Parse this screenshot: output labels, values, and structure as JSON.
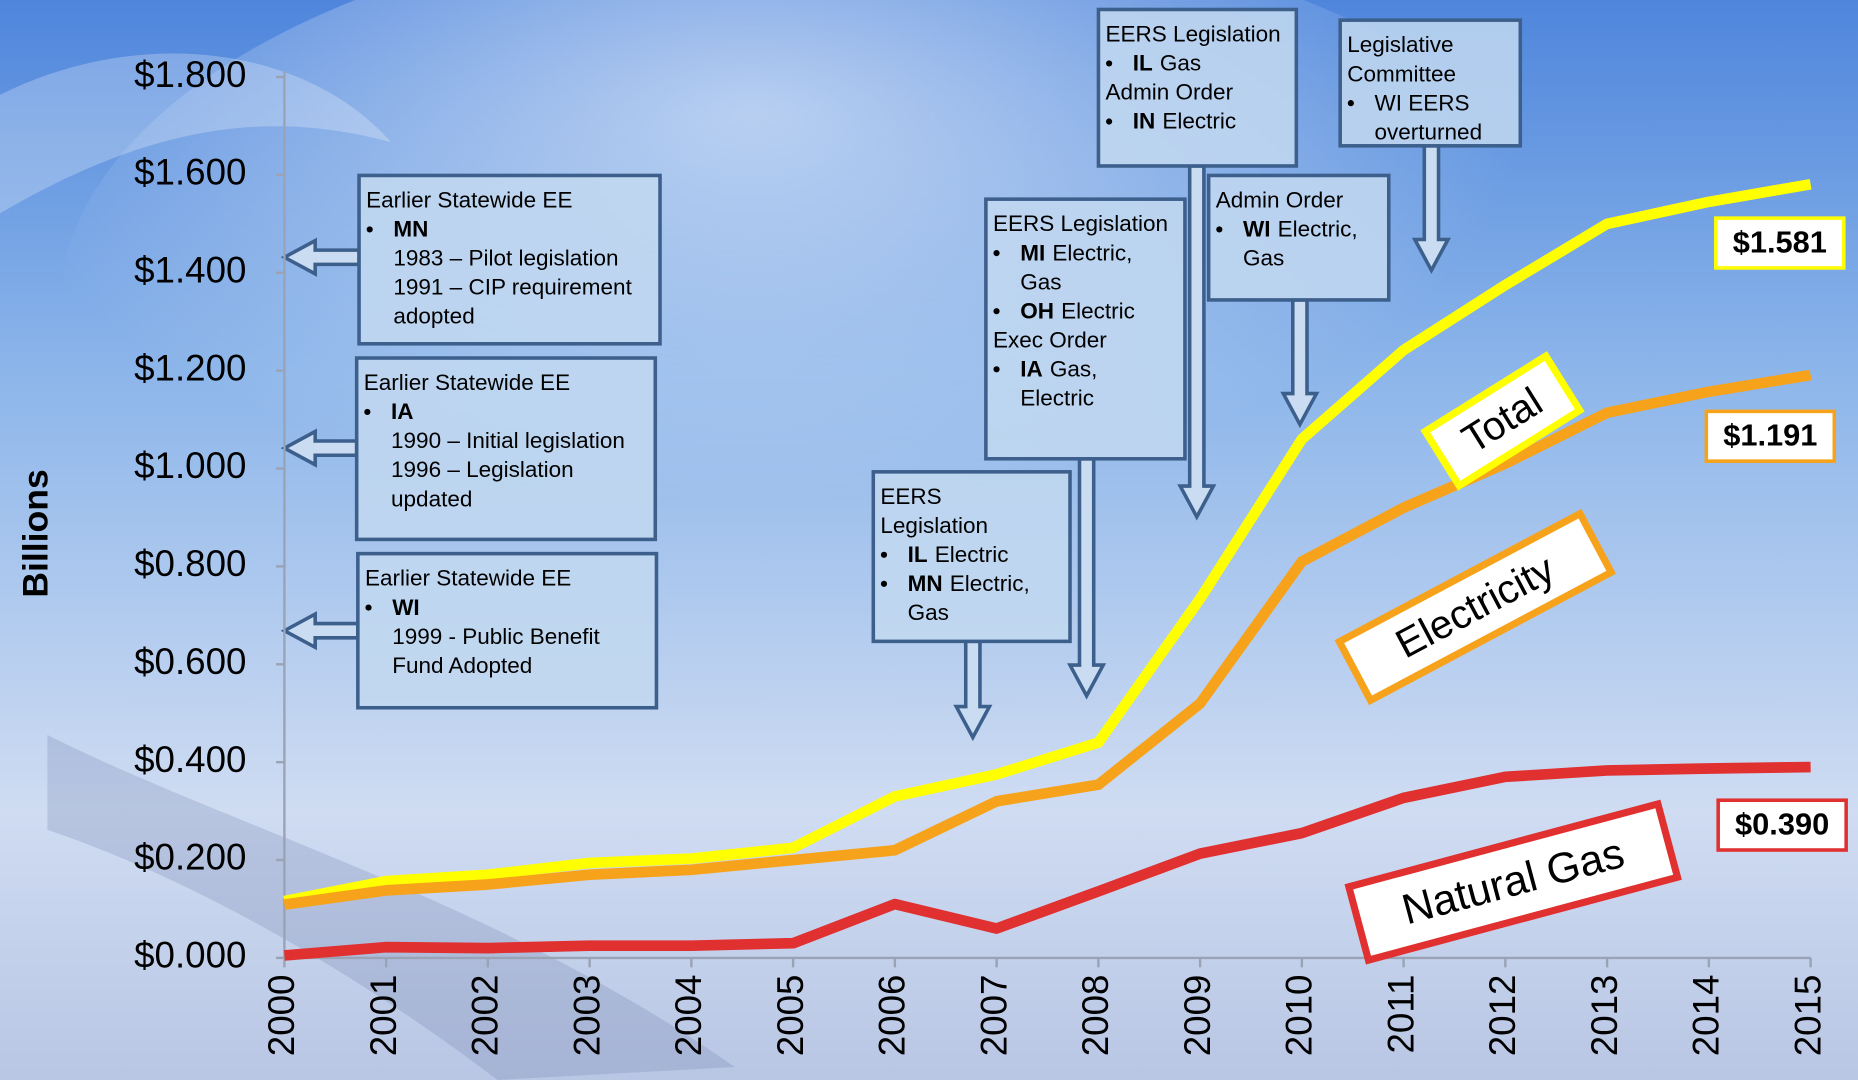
{
  "chart_data": {
    "type": "line",
    "y_axis_label": "Billions",
    "x": [
      2000,
      2001,
      2002,
      2003,
      2004,
      2005,
      2006,
      2007,
      2008,
      2009,
      2010,
      2011,
      2012,
      2013,
      2014,
      2015
    ],
    "xlim": [
      2000,
      2015
    ],
    "xticks": [
      2000,
      2001,
      2002,
      2003,
      2004,
      2005,
      2006,
      2007,
      2008,
      2009,
      2010,
      2011,
      2012,
      2013,
      2014,
      2015
    ],
    "ylim": [
      0,
      1.8
    ],
    "yticks": [
      {
        "value": 0,
        "label": "$0.000"
      },
      {
        "value": 0.2,
        "label": "$0.200"
      },
      {
        "value": 0.4,
        "label": "$0.400"
      },
      {
        "value": 0.6,
        "label": "$0.600"
      },
      {
        "value": 0.8,
        "label": "$0.800"
      },
      {
        "value": 1.0,
        "label": "$1.000"
      },
      {
        "value": 1.2,
        "label": "$1.200"
      },
      {
        "value": 1.4,
        "label": "$1.400"
      },
      {
        "value": 1.6,
        "label": "$1.600"
      },
      {
        "value": 1.8,
        "label": "$1.800"
      }
    ],
    "grid": false,
    "series": [
      {
        "name": "Total",
        "color": "#ffff00",
        "values": [
          0.116,
          0.157,
          0.17,
          0.194,
          0.203,
          0.225,
          0.33,
          0.375,
          0.44,
          0.734,
          1.06,
          1.242,
          1.375,
          1.5,
          1.545,
          1.581
        ],
        "value_labels": [
          null,
          null,
          null,
          null,
          null,
          null,
          null,
          null,
          null,
          null,
          null,
          null,
          null,
          null,
          null,
          "$1.581"
        ]
      },
      {
        "name": "Electricity",
        "color": "#f7a21b",
        "values": [
          0.109,
          0.138,
          0.15,
          0.17,
          0.18,
          0.2,
          0.22,
          0.32,
          0.354,
          0.52,
          0.81,
          0.92,
          1.01,
          1.114,
          1.157,
          1.191
        ],
        "value_labels": [
          null,
          null,
          null,
          null,
          null,
          null,
          null,
          null,
          null,
          null,
          null,
          null,
          null,
          null,
          null,
          "$1.191"
        ]
      },
      {
        "name": "Natural Gas",
        "color": "#e03030",
        "values": [
          0.005,
          0.022,
          0.02,
          0.025,
          0.025,
          0.03,
          0.11,
          0.06,
          0.136,
          0.213,
          0.255,
          0.327,
          0.37,
          0.383,
          0.387,
          0.39
        ],
        "value_labels": [
          null,
          null,
          null,
          null,
          null,
          null,
          null,
          null,
          null,
          null,
          null,
          null,
          null,
          null,
          null,
          "$0.390"
        ]
      }
    ],
    "annotations": [
      {
        "lines": [
          {
            "text": "Earlier Statewide EE"
          },
          {
            "bullet": true,
            "bold": "MN"
          },
          {
            "indent": true,
            "text": "1983 – Pilot legislation"
          },
          {
            "indent": true,
            "text": "1991 – CIP requirement"
          },
          {
            "indent": true,
            "text": "adopted"
          }
        ]
      },
      {
        "lines": [
          {
            "text": "Earlier Statewide EE"
          },
          {
            "bullet": true,
            "bold": "IA"
          },
          {
            "indent": true,
            "text": "1990 – Initial legislation"
          },
          {
            "indent": true,
            "text": "1996 – Legislation"
          },
          {
            "indent": true,
            "text": "updated"
          }
        ]
      },
      {
        "lines": [
          {
            "text": "Earlier Statewide EE"
          },
          {
            "bullet": true,
            "bold": "WI"
          },
          {
            "indent": true,
            "text": "1999 - Public Benefit"
          },
          {
            "indent": true,
            "text": "Fund Adopted"
          }
        ]
      },
      {
        "lines": [
          {
            "text": "EERS"
          },
          {
            "text": "Legislation"
          },
          {
            "bullet": true,
            "bold": "IL",
            "text": "Electric"
          },
          {
            "bullet": true,
            "bold": "MN",
            "text": "Electric,"
          },
          {
            "indent": true,
            "text": "Gas"
          }
        ]
      },
      {
        "lines": [
          {
            "text": "EERS Legislation"
          },
          {
            "bullet": true,
            "bold": "MI",
            "text": "Electric,"
          },
          {
            "indent": true,
            "text": "Gas"
          },
          {
            "bullet": true,
            "bold": "OH",
            "text": "Electric"
          },
          {
            "text": "Exec Order"
          },
          {
            "bullet": true,
            "bold": "IA",
            "text": "Gas,"
          },
          {
            "indent": true,
            "text": "Electric"
          }
        ]
      },
      {
        "lines": [
          {
            "text": "EERS Legislation"
          },
          {
            "bullet": true,
            "bold": "IL",
            "text": "Gas"
          },
          {
            "text": "Admin Order"
          },
          {
            "bullet": true,
            "bold": "IN",
            "text": "Electric"
          }
        ]
      },
      {
        "lines": [
          {
            "text": "Admin Order"
          },
          {
            "bullet": true,
            "bold": "WI",
            "text": "Electric,"
          },
          {
            "indent": true,
            "text": "Gas"
          }
        ]
      },
      {
        "lines": [
          {
            "text": "Legislative"
          },
          {
            "text": "Committee"
          },
          {
            "bullet": true,
            "text": "WI EERS"
          },
          {
            "indent": true,
            "text": "overturned"
          }
        ]
      }
    ]
  }
}
